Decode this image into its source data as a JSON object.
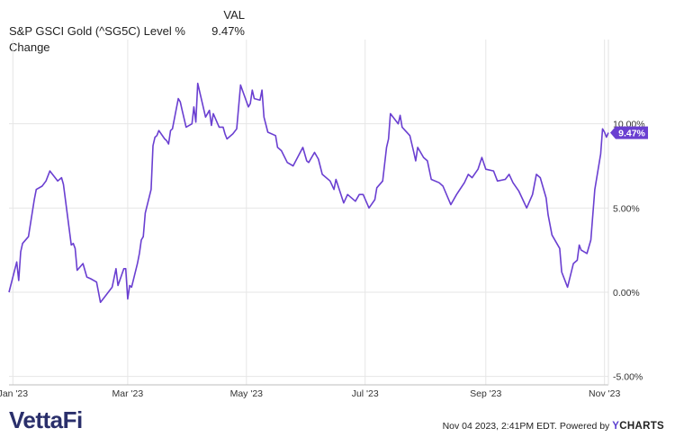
{
  "legend": {
    "column_header": "VAL",
    "series_name": "S&P GSCI Gold (^SG5C) Level % Change",
    "series_value": "9.47%"
  },
  "colors": {
    "series": "#6a3fd1",
    "grid": "#e6e6e6",
    "text": "#333333",
    "badge_text": "#ffffff"
  },
  "chart_data": {
    "type": "line",
    "title": "",
    "xlabel": "",
    "ylabel": "",
    "x_ticks": [
      "Jan '23",
      "Mar '23",
      "May '23",
      "Jul '23",
      "Sep '23",
      "Nov '23"
    ],
    "x_tick_dates": [
      "2023-01-01",
      "2023-03-01",
      "2023-05-01",
      "2023-07-01",
      "2023-09-01",
      "2023-11-01"
    ],
    "y_ticks": [
      "10.00%",
      "5.00%",
      "0.00%",
      "-5.00%"
    ],
    "y_tick_values": [
      10,
      5,
      0,
      -5
    ],
    "ylim": [
      -5.5,
      15
    ],
    "xlim": [
      "2022-12-30",
      "2023-11-03"
    ],
    "grid": true,
    "end_label": "9.47%",
    "series": [
      {
        "name": "S&P GSCI Gold (^SG5C) Level % Change",
        "x": [
          "2022-12-30",
          "2023-01-03",
          "2023-01-04",
          "2023-01-05",
          "2023-01-06",
          "2023-01-09",
          "2023-01-12",
          "2023-01-13",
          "2023-01-16",
          "2023-01-18",
          "2023-01-20",
          "2023-01-24",
          "2023-01-26",
          "2023-01-27",
          "2023-01-31",
          "2023-02-01",
          "2023-02-02",
          "2023-02-03",
          "2023-02-06",
          "2023-02-08",
          "2023-02-10",
          "2023-02-13",
          "2023-02-15",
          "2023-02-17",
          "2023-02-21",
          "2023-02-23",
          "2023-02-24",
          "2023-02-27",
          "2023-02-28",
          "2023-03-01",
          "2023-03-02",
          "2023-03-03",
          "2023-03-06",
          "2023-03-07",
          "2023-03-08",
          "2023-03-09",
          "2023-03-10",
          "2023-03-13",
          "2023-03-14",
          "2023-03-15",
          "2023-03-16",
          "2023-03-17",
          "2023-03-20",
          "2023-03-21",
          "2023-03-22",
          "2023-03-23",
          "2023-03-24",
          "2023-03-27",
          "2023-03-28",
          "2023-03-29",
          "2023-03-31",
          "2023-04-03",
          "2023-04-04",
          "2023-04-05",
          "2023-04-06",
          "2023-04-10",
          "2023-04-12",
          "2023-04-13",
          "2023-04-14",
          "2023-04-17",
          "2023-04-19",
          "2023-04-20",
          "2023-04-21",
          "2023-04-24",
          "2023-04-26",
          "2023-04-28",
          "2023-05-02",
          "2023-05-03",
          "2023-05-04",
          "2023-05-05",
          "2023-05-08",
          "2023-05-09",
          "2023-05-10",
          "2023-05-12",
          "2023-05-16",
          "2023-05-17",
          "2023-05-19",
          "2023-05-22",
          "2023-05-25",
          "2023-05-30",
          "2023-06-01",
          "2023-06-02",
          "2023-06-05",
          "2023-06-07",
          "2023-06-09",
          "2023-06-13",
          "2023-06-15",
          "2023-06-16",
          "2023-06-20",
          "2023-06-22",
          "2023-06-26",
          "2023-06-28",
          "2023-06-30",
          "2023-07-03",
          "2023-07-06",
          "2023-07-07",
          "2023-07-10",
          "2023-07-12",
          "2023-07-13",
          "2023-07-14",
          "2023-07-18",
          "2023-07-19",
          "2023-07-20",
          "2023-07-24",
          "2023-07-26",
          "2023-07-27",
          "2023-07-28",
          "2023-07-31",
          "2023-08-02",
          "2023-08-04",
          "2023-08-08",
          "2023-08-10",
          "2023-08-14",
          "2023-08-17",
          "2023-08-21",
          "2023-08-23",
          "2023-08-25",
          "2023-08-28",
          "2023-08-30",
          "2023-09-01",
          "2023-09-05",
          "2023-09-07",
          "2023-09-11",
          "2023-09-13",
          "2023-09-15",
          "2023-09-18",
          "2023-09-20",
          "2023-09-22",
          "2023-09-25",
          "2023-09-27",
          "2023-09-29",
          "2023-10-02",
          "2023-10-03",
          "2023-10-05",
          "2023-10-09",
          "2023-10-10",
          "2023-10-12",
          "2023-10-13",
          "2023-10-16",
          "2023-10-18",
          "2023-10-19",
          "2023-10-20",
          "2023-10-23",
          "2023-10-25",
          "2023-10-27",
          "2023-10-30",
          "2023-10-31",
          "2023-11-01",
          "2023-11-02",
          "2023-11-03"
        ],
        "values": [
          0.0,
          1.8,
          0.7,
          2.4,
          2.9,
          3.3,
          5.5,
          6.1,
          6.3,
          6.6,
          7.2,
          6.6,
          6.8,
          6.4,
          2.8,
          2.9,
          2.6,
          1.3,
          1.7,
          0.9,
          0.8,
          0.6,
          -0.6,
          -0.3,
          0.3,
          1.4,
          0.4,
          1.4,
          1.4,
          -0.4,
          0.4,
          0.3,
          1.7,
          2.3,
          3.1,
          3.3,
          4.7,
          6.1,
          8.7,
          9.2,
          9.3,
          9.6,
          9.1,
          9.0,
          8.8,
          9.6,
          9.7,
          11.5,
          11.3,
          10.8,
          9.8,
          10.0,
          11.0,
          10.1,
          12.4,
          10.4,
          10.8,
          9.9,
          10.6,
          9.8,
          9.8,
          9.4,
          9.1,
          9.4,
          9.7,
          12.3,
          11.0,
          11.2,
          12.0,
          11.5,
          11.4,
          12.0,
          10.4,
          9.5,
          9.3,
          8.6,
          8.4,
          7.7,
          7.5,
          8.6,
          7.8,
          7.7,
          8.3,
          7.9,
          7.0,
          6.6,
          6.1,
          6.7,
          5.3,
          5.8,
          5.4,
          5.8,
          5.8,
          5.0,
          5.5,
          6.2,
          6.6,
          8.6,
          9.1,
          10.6,
          10.0,
          10.5,
          9.8,
          9.3,
          8.3,
          7.8,
          8.6,
          8.0,
          7.8,
          6.7,
          6.5,
          6.3,
          5.2,
          5.8,
          6.5,
          7.0,
          6.8,
          7.3,
          8.0,
          7.3,
          7.2,
          6.6,
          6.7,
          7.0,
          6.5,
          6.0,
          5.5,
          5.0,
          5.8,
          7.0,
          6.8,
          5.6,
          4.6,
          3.4,
          2.6,
          1.2,
          0.6,
          0.3,
          1.7,
          1.9,
          2.8,
          2.5,
          2.3,
          3.1,
          6.1,
          8.2,
          9.7,
          9.5,
          9.2,
          9.47
        ]
      }
    ]
  },
  "footer": {
    "brand": "VettaFi",
    "brand_fi": "Fi",
    "timestamp": "Nov 04 2023, 2:41PM EDT.",
    "powered_by": "Powered by",
    "ycharts_y": "Y",
    "ycharts_rest": "CHARTS"
  }
}
